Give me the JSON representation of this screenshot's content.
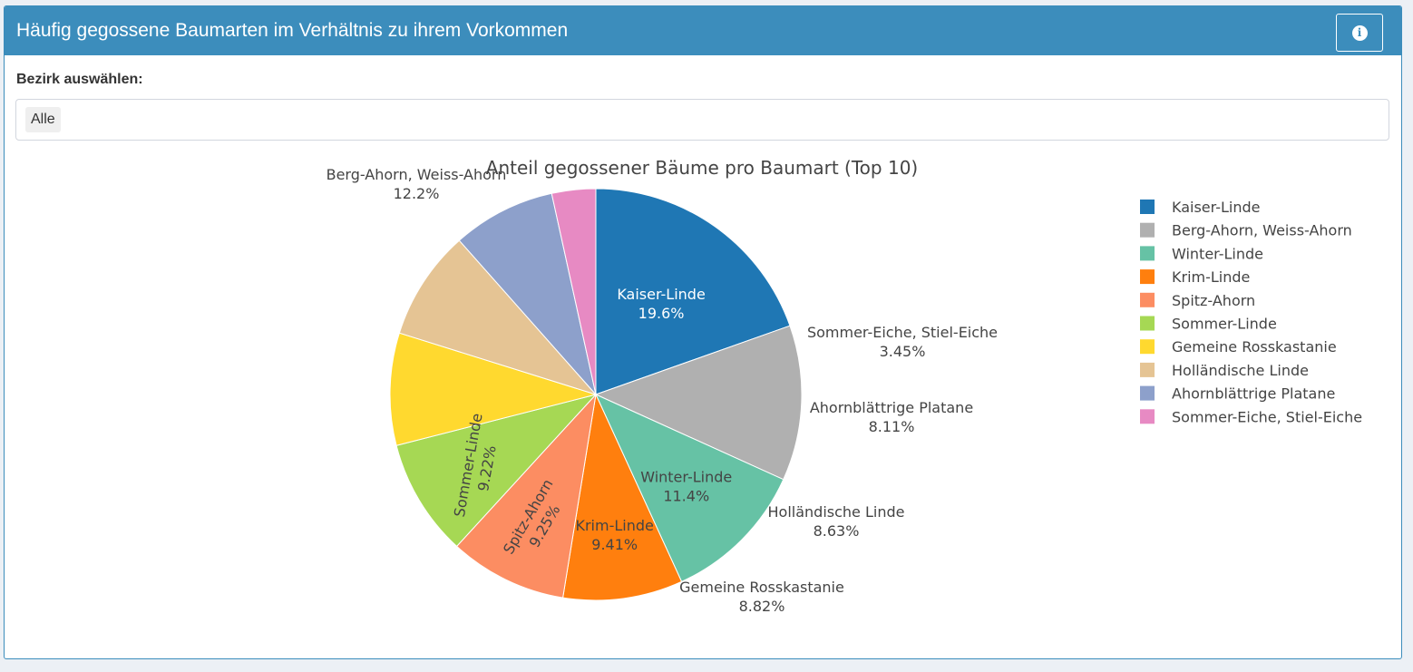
{
  "header": {
    "title": "Häufig gegossene Baumarten im Verhältnis zu ihrem Vorkommen",
    "info_icon": "info-icon"
  },
  "filter": {
    "label": "Bezirk auswählen:",
    "selected": "Alle"
  },
  "colors": {
    "header_bg": "#3c8dbc",
    "header_text": "#ffffff"
  },
  "chart_data": {
    "type": "pie",
    "title": "Anteil gegossener Bäume pro Baumart (Top 10)",
    "legend_position": "right",
    "slices": [
      {
        "label": "Kaiser-Linde",
        "value": 19.6,
        "text": "19.6%",
        "color": "#1f77b4"
      },
      {
        "label": "Berg-Ahorn, Weiss-Ahorn",
        "value": 12.2,
        "text": "12.2%",
        "color": "#b0b0b0"
      },
      {
        "label": "Winter-Linde",
        "value": 11.4,
        "text": "11.4%",
        "color": "#66c2a5"
      },
      {
        "label": "Krim-Linde",
        "value": 9.41,
        "text": "9.41%",
        "color": "#ff7f0e"
      },
      {
        "label": "Spitz-Ahorn",
        "value": 9.25,
        "text": "9.25%",
        "color": "#fc8d62"
      },
      {
        "label": "Sommer-Linde",
        "value": 9.22,
        "text": "9.22%",
        "color": "#a6d854"
      },
      {
        "label": "Gemeine Rosskastanie",
        "value": 8.82,
        "text": "8.82%",
        "color": "#ffd92f"
      },
      {
        "label": "Holländische Linde",
        "value": 8.63,
        "text": "8.63%",
        "color": "#e5c494"
      },
      {
        "label": "Ahornblättrige Platane",
        "value": 8.11,
        "text": "8.11%",
        "color": "#8da0cb"
      },
      {
        "label": "Sommer-Eiche, Stiel-Eiche",
        "value": 3.45,
        "text": "3.45%",
        "color": "#e78ac3"
      }
    ]
  }
}
